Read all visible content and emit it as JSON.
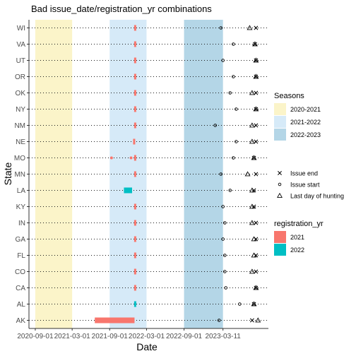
{
  "chart_data": {
    "type": "scatter",
    "title": "Bad issue_date/registration_yr combinations",
    "xlabel": "Date",
    "ylabel": "State",
    "x_tick_labels": [
      "2020-09-01",
      "2021-03-01",
      "2021-09-01",
      "2022-03-01",
      "2022-09-01",
      "2023-03-11"
    ],
    "xlim": [
      "2020-08-01",
      "2023-10-20"
    ],
    "states": [
      "WI",
      "VA",
      "UT",
      "OR",
      "OK",
      "NY",
      "NM",
      "NE",
      "MO",
      "MN",
      "LA",
      "KY",
      "IN",
      "GA",
      "FL",
      "CO",
      "CA",
      "AL",
      "AK"
    ],
    "seasons": {
      "title": "Seasons",
      "items": [
        {
          "name": "2020-2021",
          "start": "2020-09-01",
          "end": "2021-03-01",
          "color": "#FBF4C9"
        },
        {
          "name": "2021-2022",
          "start": "2021-09-01",
          "end": "2022-03-01",
          "color": "#D6EAF8"
        },
        {
          "name": "2022-2023",
          "start": "2022-09-01",
          "end": "2023-03-11",
          "color": "#B4D6E7"
        }
      ]
    },
    "registration_yr": {
      "title": "registration_yr",
      "items": [
        {
          "name": "2021",
          "color": "#F8766D"
        },
        {
          "name": "2022",
          "color": "#00BFC4"
        }
      ]
    },
    "marker_legend": [
      {
        "shape": "cross",
        "label": "Issue end"
      },
      {
        "shape": "circle",
        "label": "Issue start"
      },
      {
        "shape": "triangle",
        "label": "Last day of hunting"
      }
    ],
    "issue_ranges": [
      {
        "state": "WI",
        "start": "2021-12-30",
        "end": "2022-01-05",
        "registration_yr": "2021"
      },
      {
        "state": "VA",
        "start": "2021-12-30",
        "end": "2022-01-05",
        "registration_yr": "2021"
      },
      {
        "state": "UT",
        "start": "2021-12-30",
        "end": "2022-01-05",
        "registration_yr": "2021"
      },
      {
        "state": "OR",
        "start": "2021-12-30",
        "end": "2022-01-05",
        "registration_yr": "2021"
      },
      {
        "state": "OK",
        "start": "2021-12-30",
        "end": "2022-01-05",
        "registration_yr": "2021"
      },
      {
        "state": "NY",
        "start": "2021-12-30",
        "end": "2022-01-05",
        "registration_yr": "2021"
      },
      {
        "state": "NM",
        "start": "2021-12-30",
        "end": "2022-01-05",
        "registration_yr": "2021"
      },
      {
        "state": "NE",
        "start": "2021-12-25",
        "end": "2022-01-01",
        "registration_yr": "2021"
      },
      {
        "state": "MO",
        "start": "2021-12-30",
        "end": "2022-01-05",
        "registration_yr": "2021"
      },
      {
        "state": "MN",
        "start": "2021-12-30",
        "end": "2022-01-05",
        "registration_yr": "2021"
      },
      {
        "state": "LA",
        "start": "2021-11-10",
        "end": "2021-12-20",
        "registration_yr": "2022"
      },
      {
        "state": "KY",
        "start": "2021-12-30",
        "end": "2022-01-05",
        "registration_yr": "2021"
      },
      {
        "state": "IN",
        "start": "2021-12-30",
        "end": "2022-01-05",
        "registration_yr": "2021"
      },
      {
        "state": "GA",
        "start": "2021-12-30",
        "end": "2022-01-05",
        "registration_yr": "2021"
      },
      {
        "state": "FL",
        "start": "2021-12-30",
        "end": "2022-01-05",
        "registration_yr": "2021"
      },
      {
        "state": "CO",
        "start": "2021-12-30",
        "end": "2022-01-05",
        "registration_yr": "2021"
      },
      {
        "state": "CA",
        "start": "2021-12-30",
        "end": "2022-01-05",
        "registration_yr": "2021"
      },
      {
        "state": "AL",
        "start": "2021-12-30",
        "end": "2022-01-05",
        "registration_yr": "2022"
      },
      {
        "state": "AK",
        "start": "2021-06-20",
        "end": "2022-01-01",
        "registration_yr": "2021"
      }
    ],
    "extra_points": [
      {
        "state": "MO",
        "date": "2021-09-10",
        "registration_yr": "2021"
      },
      {
        "state": "MO",
        "date": "2021-12-15",
        "registration_yr": "2021"
      }
    ],
    "issue_start": [
      {
        "state": "WI",
        "date": "2023-03-01"
      },
      {
        "state": "VA",
        "date": "2023-05-01"
      },
      {
        "state": "UT",
        "date": "2023-03-11"
      },
      {
        "state": "OR",
        "date": "2023-05-01"
      },
      {
        "state": "OK",
        "date": "2023-04-15"
      },
      {
        "state": "NY",
        "date": "2023-05-15"
      },
      {
        "state": "NM",
        "date": "2023-02-01"
      },
      {
        "state": "NE",
        "date": "2023-05-15"
      },
      {
        "state": "MO",
        "date": "2023-05-01"
      },
      {
        "state": "MN",
        "date": "2023-03-01"
      },
      {
        "state": "LA",
        "date": "2023-04-15"
      },
      {
        "state": "KY",
        "date": "2023-03-11"
      },
      {
        "state": "IN",
        "date": "2023-03-20"
      },
      {
        "state": "GA",
        "date": "2023-03-11"
      },
      {
        "state": "FL",
        "date": "2023-03-20"
      },
      {
        "state": "CO",
        "date": "2023-03-20"
      },
      {
        "state": "CA",
        "date": "2023-03-25"
      },
      {
        "state": "AL",
        "date": "2023-06-01"
      },
      {
        "state": "AK",
        "date": "2023-02-20"
      }
    ],
    "issue_end": [
      {
        "state": "WI",
        "date": "2023-08-20"
      },
      {
        "state": "VA",
        "date": "2023-08-15"
      },
      {
        "state": "UT",
        "date": "2023-08-20"
      },
      {
        "state": "OR",
        "date": "2023-08-20"
      },
      {
        "state": "OK",
        "date": "2023-08-20"
      },
      {
        "state": "NY",
        "date": "2023-08-20"
      },
      {
        "state": "NM",
        "date": "2023-08-20"
      },
      {
        "state": "NE",
        "date": "2023-08-20"
      },
      {
        "state": "MO",
        "date": "2023-08-10"
      },
      {
        "state": "MN",
        "date": "2023-08-20"
      },
      {
        "state": "LA",
        "date": "2023-08-10"
      },
      {
        "state": "KY",
        "date": "2023-08-10"
      },
      {
        "state": "IN",
        "date": "2023-08-20"
      },
      {
        "state": "GA",
        "date": "2023-08-20"
      },
      {
        "state": "FL",
        "date": "2023-08-20"
      },
      {
        "state": "CO",
        "date": "2023-08-20"
      },
      {
        "state": "CA",
        "date": "2023-08-20"
      },
      {
        "state": "AL",
        "date": "2023-08-10"
      },
      {
        "state": "AK",
        "date": "2023-08-01"
      }
    ],
    "last_day_of_hunting": [
      {
        "state": "WI",
        "date": "2023-07-20"
      },
      {
        "state": "VA",
        "date": "2023-08-15"
      },
      {
        "state": "UT",
        "date": "2023-08-20"
      },
      {
        "state": "OR",
        "date": "2023-08-20"
      },
      {
        "state": "OK",
        "date": "2023-08-01"
      },
      {
        "state": "NY",
        "date": "2023-08-20"
      },
      {
        "state": "NM",
        "date": "2023-08-01"
      },
      {
        "state": "NE",
        "date": "2023-08-01"
      },
      {
        "state": "MO",
        "date": "2023-08-10"
      },
      {
        "state": "MN",
        "date": "2023-07-10"
      },
      {
        "state": "LA",
        "date": "2023-08-01"
      },
      {
        "state": "KY",
        "date": "2023-08-01"
      },
      {
        "state": "IN",
        "date": "2023-08-01"
      },
      {
        "state": "GA",
        "date": "2023-08-10"
      },
      {
        "state": "FL",
        "date": "2023-08-10"
      },
      {
        "state": "CO",
        "date": "2023-08-01"
      },
      {
        "state": "CA",
        "date": "2023-08-20"
      },
      {
        "state": "AL",
        "date": "2023-08-10"
      },
      {
        "state": "AK",
        "date": "2023-08-30"
      }
    ]
  }
}
